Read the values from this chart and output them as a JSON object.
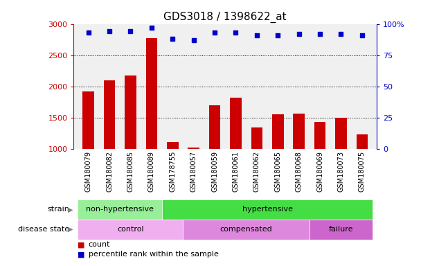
{
  "title": "GDS3018 / 1398622_at",
  "samples": [
    "GSM180079",
    "GSM180082",
    "GSM180085",
    "GSM180089",
    "GSM178755",
    "GSM180057",
    "GSM180059",
    "GSM180061",
    "GSM180062",
    "GSM180065",
    "GSM180068",
    "GSM180069",
    "GSM180073",
    "GSM180075"
  ],
  "counts": [
    1920,
    2100,
    2170,
    2770,
    1115,
    1025,
    1700,
    1820,
    1340,
    1555,
    1565,
    1430,
    1500,
    1230
  ],
  "percentile_ranks": [
    93,
    94,
    94,
    97,
    88,
    87,
    93,
    93,
    91,
    91,
    92,
    92,
    92,
    91
  ],
  "bar_color": "#cc0000",
  "dot_color": "#0000cc",
  "ylim_left": [
    1000,
    3000
  ],
  "ylim_right": [
    0,
    100
  ],
  "yticks_left": [
    1000,
    1500,
    2000,
    2500,
    3000
  ],
  "yticks_right": [
    0,
    25,
    50,
    75,
    100
  ],
  "strain_groups": [
    {
      "label": "non-hypertensive",
      "start": 0,
      "end": 4,
      "color": "#99ee99"
    },
    {
      "label": "hypertensive",
      "start": 4,
      "end": 14,
      "color": "#44dd44"
    }
  ],
  "disease_groups": [
    {
      "label": "control",
      "start": 0,
      "end": 5,
      "color": "#f0b0f0"
    },
    {
      "label": "compensated",
      "start": 5,
      "end": 11,
      "color": "#dd88dd"
    },
    {
      "label": "failure",
      "start": 11,
      "end": 14,
      "color": "#cc66cc"
    }
  ],
  "bg_color": "#f0f0f0",
  "title_fontsize": 11,
  "tick_fontsize": 8,
  "annotation_fontsize": 9,
  "grid_lines": [
    1500,
    2000,
    2500
  ]
}
